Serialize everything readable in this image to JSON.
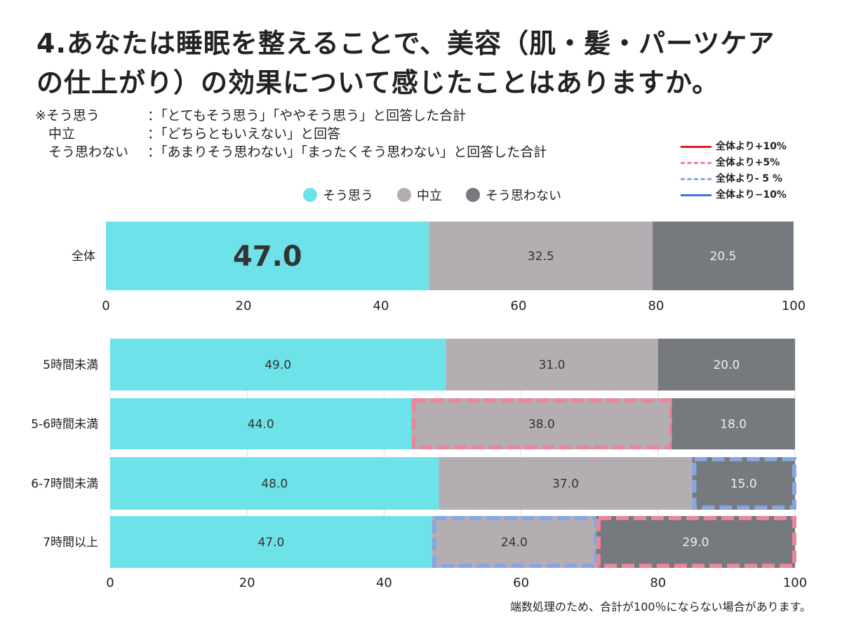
{
  "title_lines": [
    "4.あなたは睡眠を整えることで、美容（肌・髪・パーツケア",
    "の仕上がり）の効果について感じたことはありますか。"
  ],
  "notes": [
    {
      "key": "※そう思う",
      "value": "：「とてもそう思う」「ややそう思う」と回答した合計"
    },
    {
      "key": "　中立",
      "value": "：「どちらともいえない」と回答"
    },
    {
      "key": "　そう思わない",
      "value": "：「あまりそう思わない」「まったくそう思わない」と回答した合計"
    }
  ],
  "reference_legend": [
    {
      "label": "全体より+10%",
      "color": "#e8192c",
      "style": "solid"
    },
    {
      "label": "全体より+5%",
      "color": "#e8879a",
      "style": "dashed"
    },
    {
      "label": "全体より- 5 %",
      "color": "#86a6e0",
      "style": "dashed"
    },
    {
      "label": "全体より−10%",
      "color": "#3c73e0",
      "style": "solid"
    }
  ],
  "footnote": "端数処理のため、合計が100％にならない場合があります。",
  "chart_data": [
    {
      "type": "bar",
      "orientation": "horizontal",
      "stacked": true,
      "categories": [
        "全体"
      ],
      "series": [
        {
          "name": "そう思う",
          "values": [
            47.0
          ],
          "color": "#6ee2e9"
        },
        {
          "name": "中立",
          "values": [
            32.5
          ],
          "color": "#b4aeb2"
        },
        {
          "name": "そう思わない",
          "values": [
            20.5
          ],
          "color": "#76797d"
        }
      ],
      "xlim": [
        0,
        100
      ],
      "xticks": [
        0,
        20,
        40,
        60,
        80,
        100
      ],
      "legend": "top-center",
      "grid": false
    },
    {
      "type": "bar",
      "orientation": "horizontal",
      "stacked": true,
      "categories": [
        "5時間未満",
        "5-6時間未満",
        "6-7時間未満",
        "7時間以上"
      ],
      "series": [
        {
          "name": "そう思う",
          "values": [
            49.0,
            44.0,
            48.0,
            47.0
          ],
          "color": "#6ee2e9"
        },
        {
          "name": "中立",
          "values": [
            31.0,
            38.0,
            37.0,
            24.0
          ],
          "color": "#b4aeb2"
        },
        {
          "name": "そう思わない",
          "values": [
            20.0,
            18.0,
            15.0,
            29.0
          ],
          "color": "#76797d"
        }
      ],
      "highlights": [
        {
          "category": "5-6時間未満",
          "series": "中立",
          "marker": "全体より+5%"
        },
        {
          "category": "6-7時間未満",
          "series": "そう思わない",
          "marker": "全体より- 5 %"
        },
        {
          "category": "7時間以上",
          "series": "中立",
          "marker": "全体より- 5 %"
        },
        {
          "category": "7時間以上",
          "series": "そう思わない",
          "marker": "全体より+5%"
        }
      ],
      "xlim": [
        0,
        100
      ],
      "xticks": [
        0,
        20,
        40,
        60,
        80,
        100
      ],
      "grid": true
    }
  ]
}
